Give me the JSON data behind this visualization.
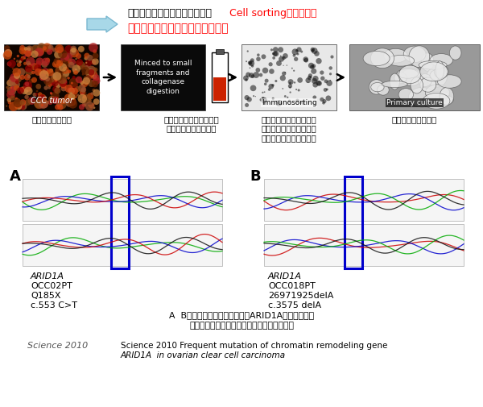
{
  "bg_color": "#ffffff",
  "title_line1_black": "手術による癢摘出組織片から、",
  "title_line1_red": "Cell sorting法により、",
  "title_line2_red": "がん細胞のみを選択的採取する。",
  "box1_label": "CCC tumor",
  "box1_caption": "摘出したがん組織",
  "box2_text": "Minced to small\nfragments and\ncollagenase\ndigestion",
  "box2_caption": "結合組織を除去し、細胞\nレベルまで細かくする",
  "box3_label": "Immunosorting",
  "box3_caption": "上皮細胞に対する抗体を\n付けたマグネットでがん\n細胞のみを選択的に採取",
  "box4_label": "Primary culture",
  "box4_caption": "がん細胞の初代培養",
  "label_A": "A",
  "label_B": "B",
  "text_A1": "ARID1A",
  "text_A2": "OCC02PT",
  "text_A3": "Q185X",
  "text_A4": "c.553 C>T",
  "text_B1": "ARID1A",
  "text_B2": "OCC018PT",
  "text_B3": "26971925delA",
  "text_B4": "c.3575 delA",
  "caption_center1": "A  Bは卵巣明細胞腫睤におけるARID1Aの遂伝子変異",
  "caption_center2": "上段は末梢血、下段は腫瘤部分の遂伝子配列",
  "ref_italic": "Science 2010",
  "ref_line1": "Science 2010 Frequent mutation of chromatin remodeling gene",
  "ref_line2": "ARID1A  in ovarian clear cell carcinoma",
  "blue_box_color": "#0000cc",
  "arrow_fill": "#a8d8e8",
  "arrow_edge": "#7ab8d0"
}
